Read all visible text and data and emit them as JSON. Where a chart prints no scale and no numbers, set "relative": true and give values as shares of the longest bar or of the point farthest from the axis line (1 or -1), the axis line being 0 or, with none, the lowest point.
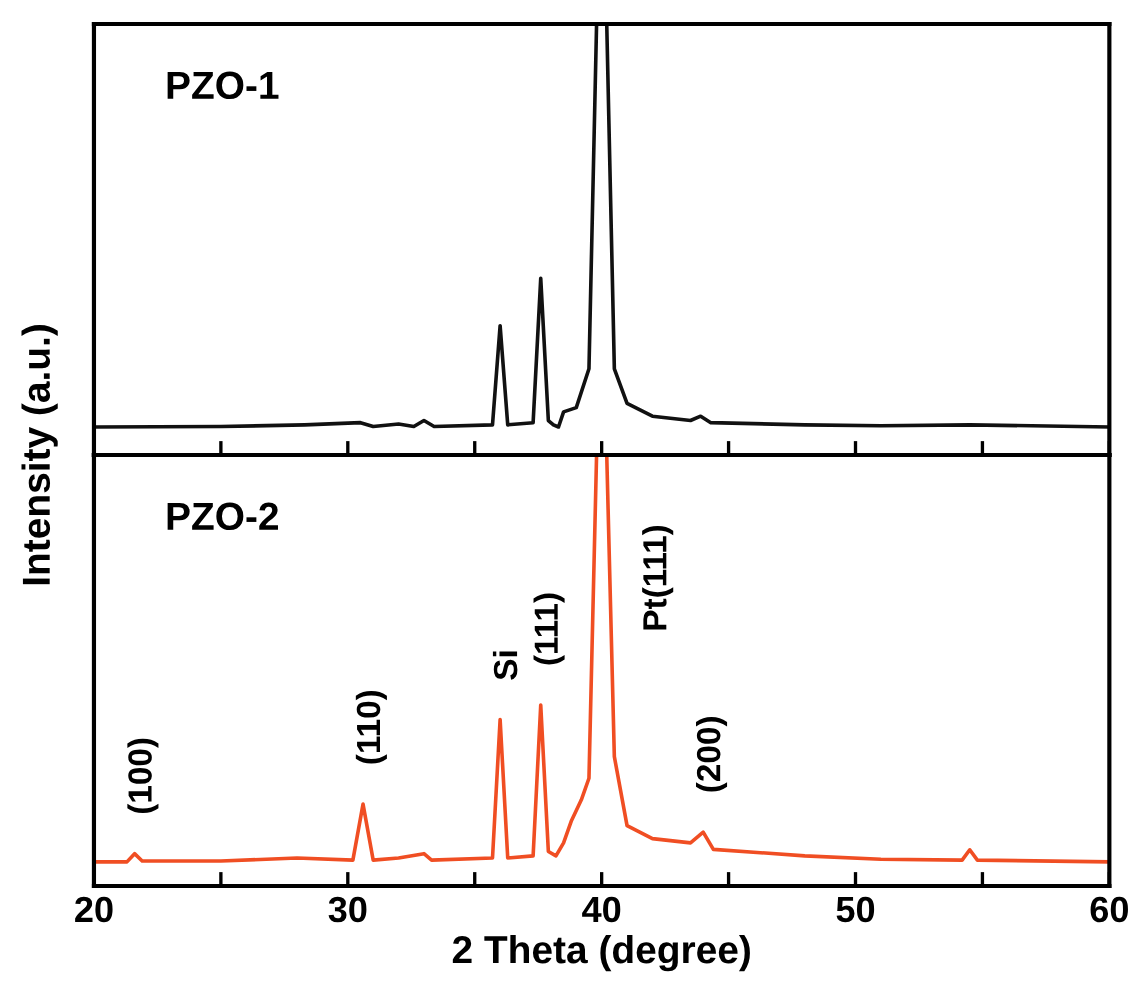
{
  "chart_data": [
    {
      "type": "line",
      "title": "PZO-1",
      "ylabel": "Intensity (a.u.)",
      "relative": true,
      "tick_labels": false,
      "legend": false,
      "grid": false,
      "xlim": [
        20,
        60
      ],
      "xticks": [
        20,
        {
          "value": 25,
          "label": null
        },
        30,
        {
          "value": 35,
          "label": null
        },
        40,
        {
          "value": 45,
          "label": null
        },
        50,
        {
          "value": 55,
          "label": null
        },
        60
      ],
      "series": [
        {
          "color": "#111111",
          "x": [
            20,
            25,
            28.3,
            30.5,
            31,
            32,
            32.6,
            33,
            33.4,
            35.7,
            36.0,
            36.3,
            37.3,
            37.6,
            37.9,
            38.1,
            38.3,
            38.5,
            39.0,
            39.5,
            39.8,
            40.2,
            40.5,
            41,
            42,
            43.5,
            43.9,
            44.3,
            48,
            51,
            54.5,
            60
          ],
          "values": [
            0.065,
            0.066,
            0.07,
            0.075,
            0.066,
            0.072,
            0.066,
            0.08,
            0.066,
            0.07,
            0.3,
            0.07,
            0.075,
            0.41,
            0.08,
            0.07,
            0.065,
            0.1,
            0.11,
            0.2,
            1,
            1,
            0.2,
            0.12,
            0.09,
            0.08,
            0.09,
            0.075,
            0.07,
            0.068,
            0.07,
            0.065
          ]
        }
      ]
    },
    {
      "type": "line",
      "title": "PZO-2",
      "xlabel": "2 Theta (degree)",
      "relative": true,
      "tick_labels": "x",
      "legend": false,
      "grid": false,
      "xlim": [
        20,
        60
      ],
      "xticks": [
        20,
        {
          "value": 25,
          "label": null
        },
        30,
        {
          "value": 35,
          "label": null
        },
        40,
        {
          "value": 45,
          "label": null
        },
        50,
        {
          "value": 55,
          "label": null
        },
        60
      ],
      "series": [
        {
          "color": "#f04e23",
          "x": [
            20,
            21.3,
            21.6,
            21.9,
            25,
            28,
            30.2,
            30.6,
            31,
            32,
            33,
            33.3,
            35.7,
            36.0,
            36.3,
            37.3,
            37.6,
            37.9,
            38.2,
            38.5,
            38.8,
            39.2,
            39.5,
            39.8,
            40.2,
            40.5,
            41,
            42,
            43.5,
            44.0,
            44.4,
            48,
            51,
            54.2,
            54.5,
            54.8,
            60
          ],
          "values": [
            0.056,
            0.056,
            0.075,
            0.058,
            0.058,
            0.065,
            0.06,
            0.19,
            0.06,
            0.065,
            0.075,
            0.06,
            0.065,
            0.386,
            0.065,
            0.07,
            0.42,
            0.08,
            0.07,
            0.1,
            0.15,
            0.2,
            0.25,
            1,
            1,
            0.3,
            0.14,
            0.11,
            0.1,
            0.125,
            0.085,
            0.07,
            0.062,
            0.06,
            0.084,
            0.06,
            0.056
          ]
        }
      ],
      "annotations": [
        {
          "text": "(100)",
          "x": 21.6,
          "y": 0.075
        },
        {
          "text": "(110)",
          "x": 30.6,
          "y": 0.19
        },
        {
          "text": "Si",
          "x": 36.0,
          "y": 0.386
        },
        {
          "text": "(111)",
          "x": 37.6,
          "y": 0.42
        },
        "Pt(111)",
        {
          "text": "(200)",
          "x": 44.0,
          "y": 0.125
        }
      ]
    }
  ]
}
